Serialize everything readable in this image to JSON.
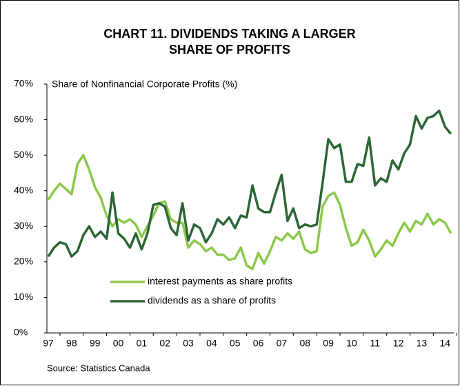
{
  "chart_data": {
    "type": "line",
    "title": [
      "CHART 11. DIVIDENDS TAKING A LARGER",
      "SHARE OF PROFITS"
    ],
    "y_axis_label": "Share of Nonfinancial  Corporate Profits (%)",
    "source": "Source: Statistics Canada",
    "categories": [
      "97",
      null,
      null,
      null,
      "98",
      null,
      null,
      null,
      "99",
      null,
      null,
      null,
      "00",
      null,
      null,
      null,
      "01",
      null,
      null,
      null,
      "02",
      null,
      null,
      null,
      "03",
      null,
      null,
      null,
      "04",
      null,
      null,
      null,
      "05",
      null,
      null,
      null,
      "06",
      null,
      null,
      null,
      "07",
      null,
      null,
      null,
      "08",
      null,
      null,
      null,
      "09",
      null,
      null,
      null,
      "10",
      null,
      null,
      null,
      "11",
      null,
      null,
      null,
      "12",
      null,
      null,
      null,
      "13",
      null,
      null,
      null,
      "14",
      null
    ],
    "series": [
      {
        "name": "interest payments as share profits",
        "color": "#8cc84b",
        "values": [
          37.5,
          40,
          42,
          40.5,
          39,
          47.5,
          50,
          46,
          41,
          38,
          33,
          30,
          32,
          31,
          32,
          30.5,
          27,
          30,
          33,
          36.5,
          37,
          32,
          31,
          31,
          24,
          26,
          25,
          23,
          24,
          22,
          22,
          20.5,
          21,
          24,
          19,
          18,
          22.5,
          19.5,
          23,
          27,
          26,
          28,
          26.5,
          28.5,
          23.5,
          22.5,
          23,
          35.5,
          38.5,
          39.5,
          36,
          29.5,
          24.5,
          25.5,
          29,
          26,
          21.5,
          23.5,
          26,
          24.5,
          28,
          31,
          28.5,
          31.5,
          30.5,
          33.5,
          30.5,
          32,
          31,
          28
        ]
      },
      {
        "name": "dividends as a share of profits",
        "color": "#2b6636",
        "values": [
          21.5,
          24,
          25.5,
          25,
          21.5,
          23,
          27.5,
          30,
          27,
          28.5,
          26.5,
          39.5,
          28,
          26.5,
          24,
          28,
          23.5,
          28,
          36,
          36.5,
          35.5,
          29.5,
          27.5,
          36.5,
          26,
          30.5,
          29.5,
          25.5,
          28,
          32,
          30.5,
          32.5,
          29.5,
          33,
          32.5,
          41.5,
          35,
          34,
          34,
          39.5,
          44.5,
          31.5,
          35,
          29.5,
          30.5,
          30,
          30.5,
          42,
          54.5,
          52,
          53,
          42.5,
          42.5,
          47.5,
          47,
          55,
          41.5,
          43.5,
          42.5,
          48.5,
          46,
          50.5,
          53,
          61,
          57.5,
          60.5,
          61,
          62.5,
          58,
          56
        ]
      }
    ],
    "ylim": [
      0,
      70
    ],
    "yticks": [
      {
        "value": 0,
        "label": "0%"
      },
      {
        "value": 10,
        "label": "10%"
      },
      {
        "value": 20,
        "label": "20%"
      },
      {
        "value": 30,
        "label": "30%"
      },
      {
        "value": 40,
        "label": "40%"
      },
      {
        "value": 50,
        "label": "50%"
      },
      {
        "value": 60,
        "label": "60%"
      },
      {
        "value": 70,
        "label": "70%"
      }
    ],
    "grid": false
  }
}
